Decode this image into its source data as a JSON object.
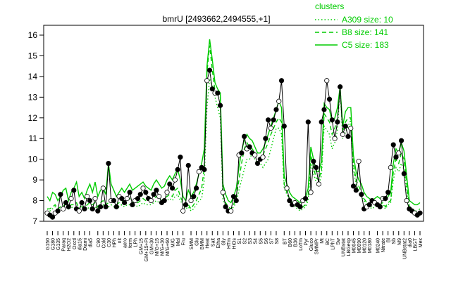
{
  "chart_data": {
    "type": "line",
    "title": "bmrU [2493662,2494555,+1]",
    "xlabel": "",
    "ylabel": "",
    "ylim": [
      7,
      16
    ],
    "y_ticks": [
      7,
      8,
      9,
      10,
      11,
      12,
      13,
      14,
      15,
      16
    ],
    "grid": false,
    "legend_title": "clusters",
    "legend_position": "top-right",
    "series": [
      {
        "name": "A309 size: 10",
        "style": "dotted",
        "color": "#00cc00",
        "values": [
          7.6,
          7.5,
          7.6,
          7.7,
          7.5,
          7.6,
          7.6,
          7.7,
          7.6,
          7.7,
          7.6,
          7.7,
          7.6,
          7.7,
          7.5,
          7.6,
          7.7,
          7.6,
          7.7,
          7.6,
          7.7,
          7.8,
          7.7,
          7.7,
          7.8,
          7.7,
          7.6,
          7.7,
          7.8,
          7.7,
          7.8,
          7.8,
          7.7,
          7.8,
          7.7,
          7.8,
          7.9,
          7.8,
          7.8,
          7.8,
          7.9,
          8.0,
          7.9,
          7.8,
          7.9,
          8.0,
          8.1,
          8.0,
          8.2,
          8.3,
          8.0,
          7.8,
          7.6,
          7.7,
          7.5,
          7.6,
          7.8,
          8.0,
          8.1,
          9.0,
          12.5,
          13.9,
          13.5,
          13.0,
          12.5,
          12.0,
          8.0,
          7.8,
          7.6,
          7.5,
          7.7,
          7.9,
          8.5,
          9.0,
          9.5,
          10.0,
          10.0,
          10.3,
          10.0,
          9.8,
          9.8,
          9.6,
          9.8,
          10.0,
          10.5,
          11.0,
          11.5,
          11.5,
          11.2,
          8.6,
          8.3,
          8.0,
          7.8,
          7.7,
          7.6,
          7.5,
          7.6,
          7.7,
          8.0,
          9.8,
          9.3,
          8.9,
          8.8,
          9.2,
          11.6,
          11.4,
          11.2,
          10.5,
          10.8,
          11.4,
          13.5,
          11.0,
          11.3,
          11.6,
          11.9,
          9.5,
          8.8,
          8.5,
          8.3,
          8.0,
          7.8,
          7.7,
          7.6,
          7.7,
          7.8,
          7.7,
          7.8,
          7.6,
          7.8,
          7.9,
          9.0,
          9.6,
          9.4,
          9.8,
          9.5,
          8.5,
          7.6,
          7.5,
          7.4,
          7.4,
          7.5
        ]
      },
      {
        "name": "B8 size: 141",
        "style": "dashed",
        "color": "#00cc00",
        "values": [
          7.6,
          7.6,
          7.7,
          7.8,
          7.6,
          7.7,
          7.7,
          7.9,
          7.6,
          7.8,
          7.8,
          7.9,
          7.6,
          7.8,
          7.6,
          7.8,
          7.9,
          7.8,
          7.9,
          7.7,
          7.9,
          8.0,
          7.8,
          7.9,
          8.0,
          7.9,
          7.8,
          7.9,
          8.0,
          7.9,
          8.0,
          8.1,
          7.9,
          8.0,
          7.9,
          8.0,
          8.1,
          8.0,
          8.0,
          8.0,
          8.1,
          8.2,
          8.1,
          8.0,
          8.1,
          8.2,
          8.3,
          8.2,
          8.5,
          8.6,
          8.2,
          7.9,
          7.7,
          7.8,
          7.6,
          7.8,
          8.0,
          8.3,
          8.6,
          9.6,
          14.2,
          15.5,
          14.3,
          13.3,
          13.2,
          13.0,
          8.3,
          7.9,
          7.7,
          7.6,
          7.8,
          8.2,
          9.0,
          9.8,
          10.5,
          10.8,
          10.6,
          10.5,
          10.3,
          10.0,
          10.0,
          10.2,
          10.5,
          10.8,
          11.2,
          11.5,
          11.8,
          12.0,
          11.8,
          8.8,
          8.4,
          8.1,
          7.9,
          7.8,
          7.7,
          7.6,
          7.7,
          7.8,
          8.2,
          10.2,
          9.6,
          9.1,
          9.0,
          9.5,
          12.2,
          12.0,
          11.8,
          11.2,
          11.5,
          12.0,
          13.5,
          11.3,
          11.8,
          12.0,
          12.0,
          9.8,
          9.0,
          8.7,
          8.4,
          8.1,
          7.9,
          7.8,
          7.7,
          7.8,
          7.9,
          7.8,
          7.9,
          7.7,
          7.9,
          8.0,
          9.4,
          10.0,
          9.8,
          10.3,
          10.0,
          8.8,
          7.7,
          7.6,
          7.5,
          7.5,
          7.6
        ]
      },
      {
        "name": "C5 size: 183",
        "style": "solid",
        "color": "#00cc00",
        "values": [
          8.2,
          8.0,
          8.4,
          8.3,
          8.0,
          8.2,
          8.5,
          8.6,
          8.0,
          8.4,
          8.6,
          8.9,
          8.2,
          8.4,
          8.1,
          8.5,
          8.8,
          8.4,
          8.9,
          8.2,
          8.5,
          8.6,
          8.3,
          9.8,
          8.8,
          8.5,
          8.2,
          8.4,
          8.6,
          8.4,
          8.6,
          8.8,
          8.5,
          8.6,
          8.7,
          8.8,
          8.9,
          8.7,
          8.6,
          8.5,
          8.8,
          9.0,
          8.8,
          8.6,
          8.7,
          9.0,
          9.2,
          9.0,
          9.3,
          9.5,
          9.0,
          8.2,
          8.0,
          8.5,
          8.2,
          8.4,
          8.8,
          9.3,
          9.8,
          10.5,
          14.5,
          15.8,
          14.8,
          13.7,
          13.4,
          13.2,
          8.8,
          8.3,
          8.0,
          7.9,
          8.2,
          8.6,
          9.6,
          10.4,
          10.9,
          11.2,
          11.0,
          10.9,
          10.6,
          10.3,
          10.3,
          10.5,
          10.8,
          11.2,
          11.6,
          12.0,
          12.4,
          12.8,
          12.5,
          9.2,
          8.8,
          8.4,
          8.2,
          8.1,
          8.0,
          7.9,
          8.0,
          8.1,
          8.6,
          10.6,
          10.0,
          9.4,
          9.4,
          9.9,
          12.7,
          12.5,
          12.4,
          11.8,
          12.0,
          12.5,
          13.5,
          11.6,
          12.3,
          12.5,
          12.5,
          10.2,
          9.4,
          9.0,
          8.8,
          8.4,
          8.2,
          8.1,
          8.0,
          8.1,
          8.2,
          8.1,
          8.2,
          8.0,
          8.2,
          8.4,
          9.8,
          10.5,
          10.3,
          10.8,
          10.4,
          9.2,
          8.0,
          7.9,
          7.8,
          7.8,
          7.9
        ]
      },
      {
        "name": "",
        "style": "solid",
        "color": "#000000",
        "points": true,
        "values": [
          7.4,
          7.3,
          7.2,
          7.4,
          7.5,
          8.3,
          7.6,
          7.9,
          7.7,
          8.1,
          8.5,
          7.6,
          7.5,
          7.9,
          7.6,
          8.2,
          8.0,
          7.6,
          8.1,
          7.5,
          7.7,
          8.6,
          7.7,
          9.8,
          8.0,
          8.0,
          7.7,
          8.2,
          8.1,
          7.9,
          8.1,
          8.4,
          7.8,
          8.0,
          8.1,
          8.3,
          8.6,
          8.4,
          8.1,
          8.0,
          8.3,
          8.5,
          8.2,
          7.9,
          8.0,
          8.4,
          8.8,
          8.6,
          9.0,
          9.5,
          10.1,
          7.5,
          7.8,
          9.7,
          8.0,
          8.2,
          8.6,
          9.4,
          9.6,
          9.5,
          13.8,
          14.3,
          13.4,
          13.2,
          13.2,
          12.6,
          8.4,
          7.7,
          7.5,
          7.5,
          8.2,
          8.0,
          10.2,
          10.3,
          11.1,
          10.5,
          10.6,
          10.3,
          10.2,
          9.8,
          10.0,
          10.1,
          11.0,
          11.9,
          11.5,
          11.9,
          12.4,
          12.8,
          13.8,
          11.6,
          8.6,
          8.0,
          7.8,
          7.9,
          7.8,
          7.7,
          8.0,
          8.1,
          11.8,
          8.4,
          9.9,
          9.6,
          8.8,
          11.8,
          12.4,
          13.8,
          12.9,
          11.9,
          11.0,
          11.8,
          13.5,
          11.2,
          11.6,
          11.1,
          11.5,
          8.7,
          8.5,
          9.9,
          8.3,
          7.6,
          7.7,
          7.8,
          8.0,
          7.9,
          7.8,
          7.7,
          8.1,
          8.1,
          8.4,
          9.6,
          10.7,
          10.1,
          10.3,
          10.9,
          9.3,
          8.0,
          7.6,
          7.5,
          7.4,
          7.3,
          7.4
        ]
      }
    ],
    "x_tick_labels": [
      "G150",
      "G180",
      "G135",
      "Paraq",
      "H2O2",
      "Oxctl",
      "dia15",
      "Diami",
      "dia5",
      "C90",
      "Cold",
      "C30",
      "HPh",
      "nit",
      "aero",
      "ferm",
      "LPh",
      "GM+15",
      "GM+15+Pi",
      "GM+30",
      "M/G+15",
      "M/G+30",
      "M/G+60",
      "M/G",
      "Mal",
      "Fru",
      "SMM",
      "Glu",
      "BMM",
      "Heat",
      "Salt",
      "Etha",
      "Gly",
      "HTm",
      "HiOs",
      "S1",
      "S2",
      "S3",
      "S4",
      "S5",
      "S6",
      "S7",
      "S8",
      "BT",
      "B60",
      "B36",
      "LoTm",
      "Pyr",
      "Gluco",
      "SMMPr",
      "Mt",
      "BC",
      "LPhT",
      "Sw",
      "UNBstat",
      "LBGexp",
      "M0045",
      "M0090",
      "M0120",
      "M0180",
      "M0240",
      "Nitrate",
      "Bl",
      "Sb",
      "M9",
      "UNBstat2",
      "dia0",
      "LBGT",
      "Mex"
    ]
  }
}
